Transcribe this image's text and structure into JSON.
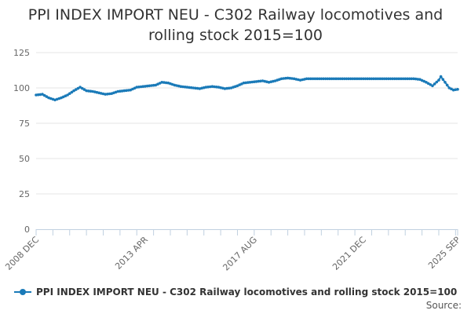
{
  "title_line1": "PPI INDEX IMPORT NEU - C302 Railway locomotives and",
  "title_line2": "rolling stock 2015=100",
  "legend_label": "PPI INDEX IMPORT NEU - C302 Railway locomotives and rolling stock 2015=100",
  "source_label": "Source:",
  "series_color": "#1a7ab8",
  "chart_data": {
    "type": "line",
    "title": "PPI INDEX IMPORT NEU - C302 Railway locomotives and rolling stock 2015=100",
    "xlabel": "",
    "ylabel": "",
    "ylim": [
      0,
      125
    ],
    "yticks": [
      0,
      25,
      50,
      75,
      100,
      125
    ],
    "xlim": [
      "2008-12",
      "2025-09"
    ],
    "xtick_labels": [
      "2008 DEC",
      "2013 APR",
      "2017 AUG",
      "2021 DEC",
      "2025 SEP"
    ],
    "xtick_dates": [
      "2008-12",
      "2013-04",
      "2017-08",
      "2021-12",
      "2025-09"
    ],
    "grid": "horizontal",
    "legend_position": "bottom",
    "series": [
      {
        "name": "PPI INDEX IMPORT NEU - C302 Railway locomotives and rolling stock 2015=100",
        "points": [
          [
            "2008-12",
            95
          ],
          [
            "2009-03",
            95.5
          ],
          [
            "2009-06",
            93
          ],
          [
            "2009-09",
            91.5
          ],
          [
            "2009-12",
            93
          ],
          [
            "2010-03",
            95
          ],
          [
            "2010-06",
            98
          ],
          [
            "2010-09",
            100.5
          ],
          [
            "2010-12",
            98
          ],
          [
            "2011-03",
            97.5
          ],
          [
            "2011-06",
            96.5
          ],
          [
            "2011-09",
            95.5
          ],
          [
            "2011-12",
            96
          ],
          [
            "2012-03",
            97.5
          ],
          [
            "2012-06",
            98
          ],
          [
            "2012-09",
            98.5
          ],
          [
            "2012-12",
            100.5
          ],
          [
            "2013-03",
            101
          ],
          [
            "2013-06",
            101.5
          ],
          [
            "2013-09",
            102
          ],
          [
            "2013-12",
            104
          ],
          [
            "2014-03",
            103.5
          ],
          [
            "2014-06",
            102
          ],
          [
            "2014-09",
            101
          ],
          [
            "2014-12",
            100.5
          ],
          [
            "2015-03",
            100
          ],
          [
            "2015-06",
            99.5
          ],
          [
            "2015-09",
            100.5
          ],
          [
            "2015-12",
            101
          ],
          [
            "2016-03",
            100.5
          ],
          [
            "2016-06",
            99.5
          ],
          [
            "2016-09",
            100
          ],
          [
            "2016-12",
            101.5
          ],
          [
            "2017-03",
            103.5
          ],
          [
            "2017-06",
            104
          ],
          [
            "2017-09",
            104.5
          ],
          [
            "2017-12",
            105
          ],
          [
            "2018-03",
            104
          ],
          [
            "2018-06",
            105
          ],
          [
            "2018-09",
            106.5
          ],
          [
            "2018-12",
            107
          ],
          [
            "2019-03",
            106.5
          ],
          [
            "2019-06",
            105.5
          ],
          [
            "2019-09",
            106.5
          ],
          [
            "2019-12",
            106.5
          ],
          [
            "2020-06",
            106.5
          ],
          [
            "2020-12",
            106.5
          ],
          [
            "2021-06",
            106.5
          ],
          [
            "2021-12",
            106.5
          ],
          [
            "2022-06",
            106.5
          ],
          [
            "2022-12",
            106.5
          ],
          [
            "2023-06",
            106.5
          ],
          [
            "2023-12",
            106.5
          ],
          [
            "2024-03",
            106
          ],
          [
            "2024-06",
            104
          ],
          [
            "2024-09",
            101.5
          ],
          [
            "2024-12",
            105.5
          ],
          [
            "2025-01",
            108
          ],
          [
            "2025-03",
            104
          ],
          [
            "2025-05",
            100
          ],
          [
            "2025-07",
            98.5
          ],
          [
            "2025-09",
            99
          ]
        ]
      }
    ]
  }
}
